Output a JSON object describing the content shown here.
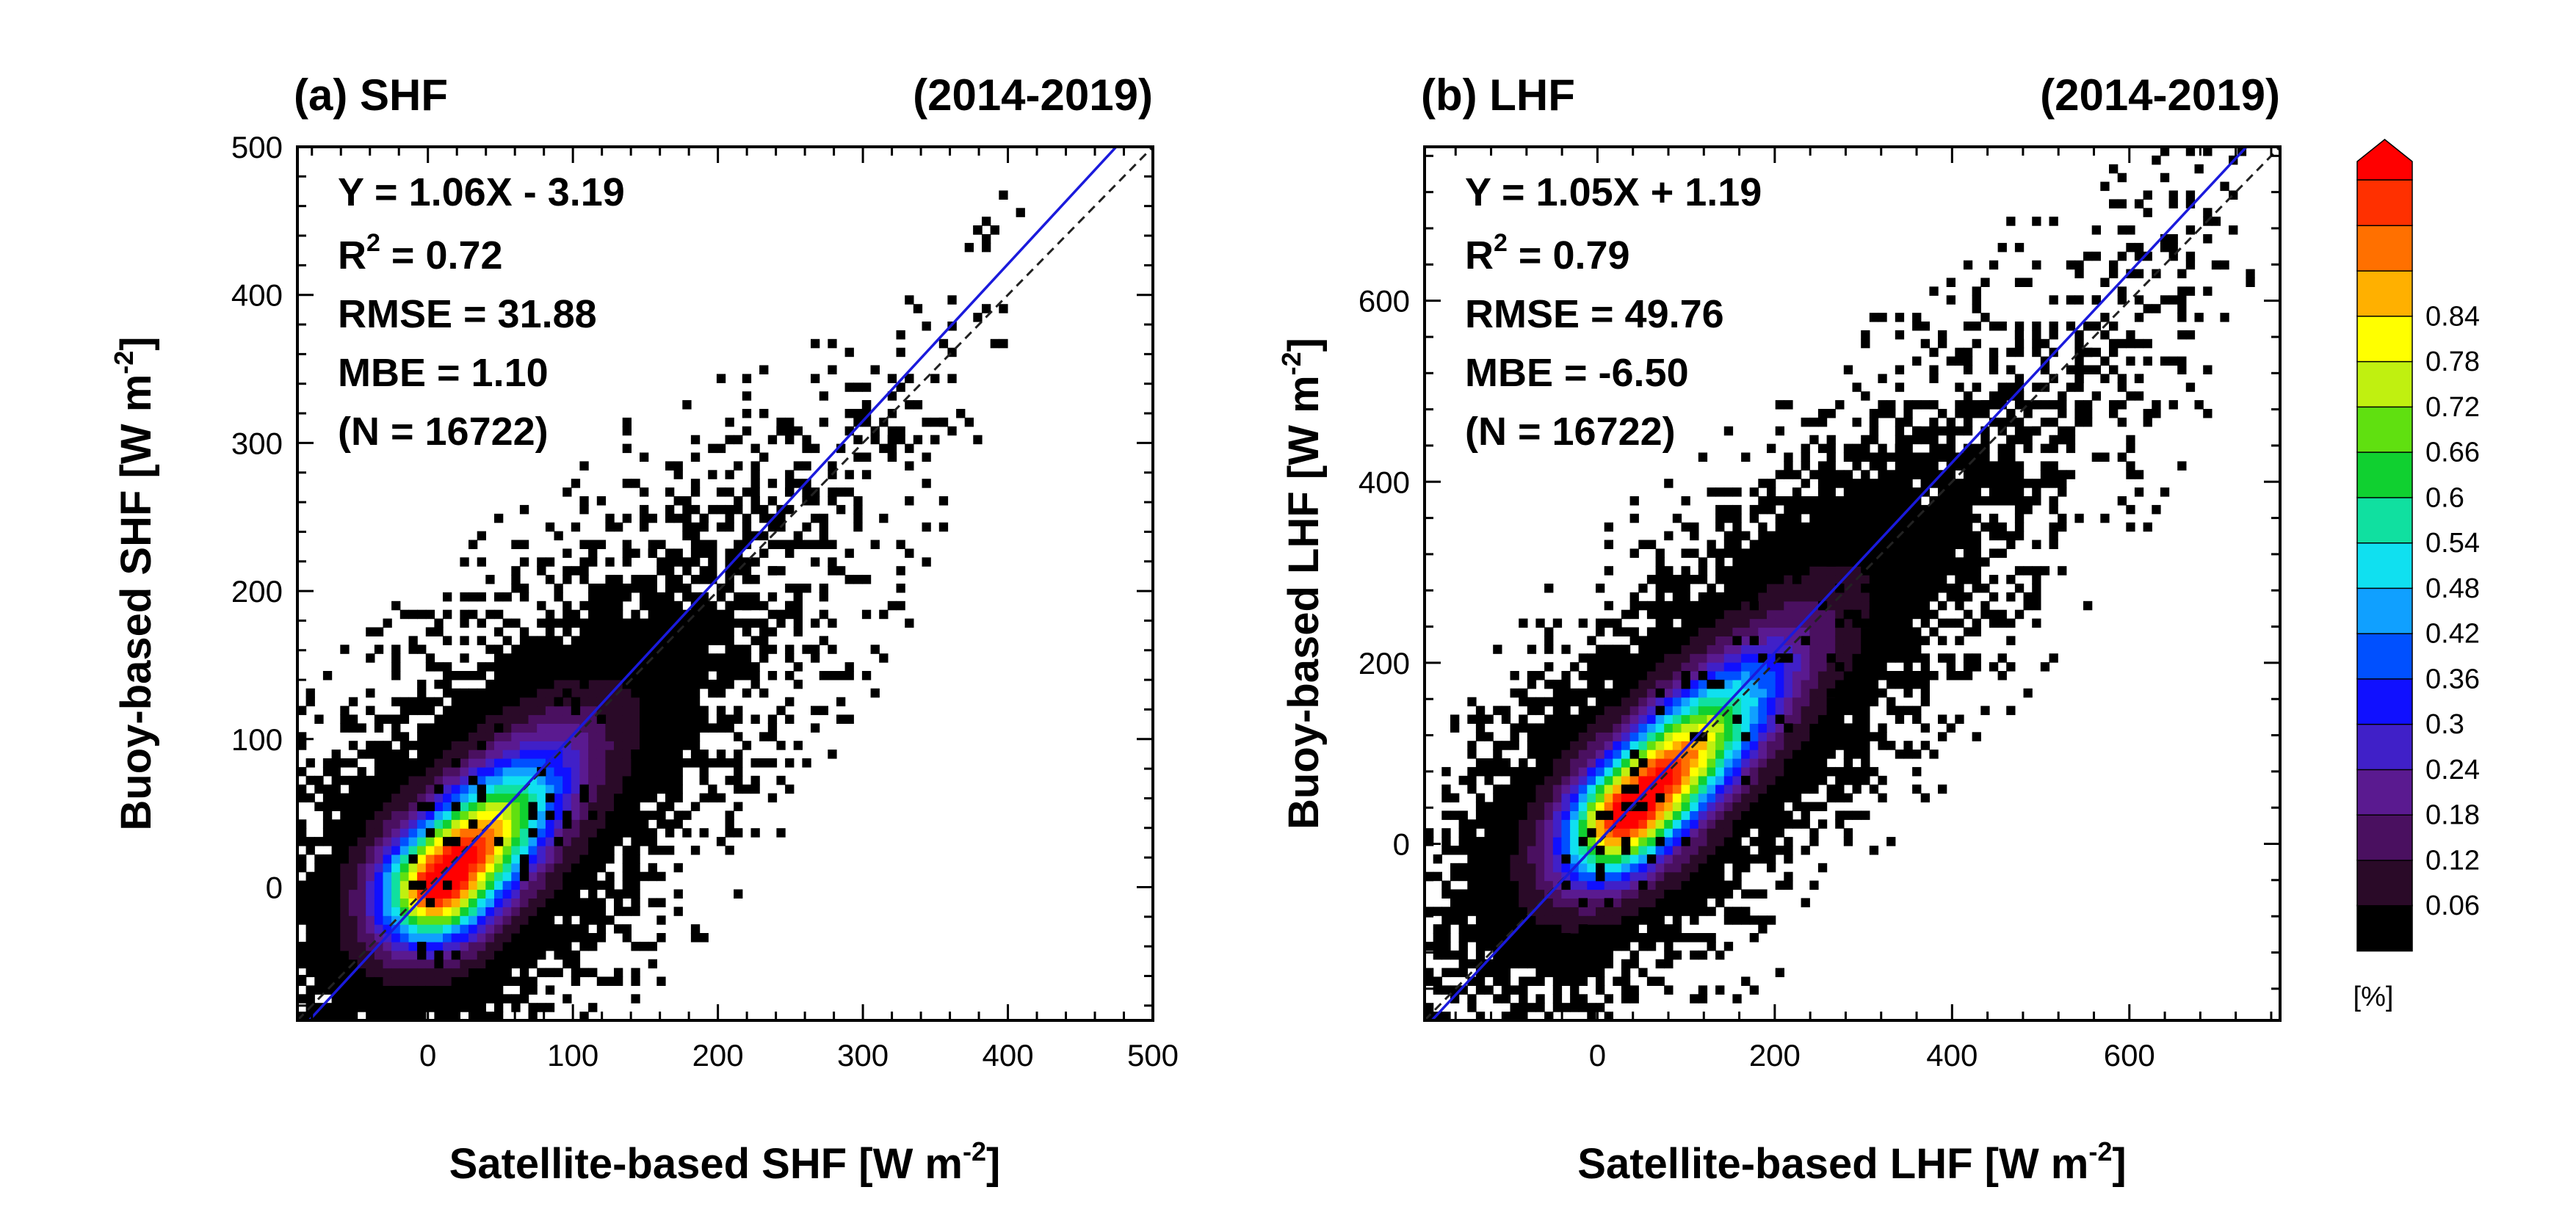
{
  "chart_data": [
    {
      "type": "heatmap",
      "panel_label": "(a) SHF",
      "period": "(2014-2019)",
      "xlabel": "Satellite-based SHF [W m",
      "ylabel": "Buoy-based SHF [W m",
      "unit_exponent": "-2",
      "xlim": [
        -90,
        500
      ],
      "ylim": [
        -90,
        500
      ],
      "xticks": [
        0,
        100,
        200,
        300,
        400,
        500
      ],
      "yticks": [
        0,
        100,
        200,
        300,
        400,
        500
      ],
      "xtick_labels": [
        "0",
        "100",
        "200",
        "300",
        "400",
        "500"
      ],
      "ytick_labels": [
        "0",
        "100",
        "200",
        "300",
        "400",
        "500"
      ],
      "regression": {
        "slope": 1.06,
        "intercept": -3.19
      },
      "stats": {
        "equation": "Y = 1.06X - 3.19",
        "r2_prefix": "R",
        "r2_sup": "2",
        "r2_value": " = 0.72",
        "rmse": "RMSE = 31.88",
        "mbe": "MBE  = 1.10",
        "n": "(N = 16722)"
      },
      "density_core": {
        "cx": 10,
        "cy": 5,
        "slope": 1.02,
        "spread_along": 75,
        "spread_across": 26,
        "peak_percent": 0.9
      },
      "outlier_range": {
        "x": [
          -25,
          410
        ],
        "y": [
          -60,
          480
        ]
      }
    },
    {
      "type": "heatmap",
      "panel_label": "(b) LHF",
      "period": "(2014-2019)",
      "xlabel": "Satellite-based LHF [W m",
      "ylabel": "Buoy-based LHF [W m",
      "unit_exponent": "-2",
      "xlim": [
        -195,
        770
      ],
      "ylim": [
        -195,
        770
      ],
      "xticks": [
        0,
        200,
        400,
        600
      ],
      "yticks": [
        0,
        200,
        400,
        600
      ],
      "xtick_labels": [
        "0",
        "200",
        "400",
        "600"
      ],
      "ytick_labels": [
        "0",
        "200",
        "400",
        "600"
      ],
      "regression": {
        "slope": 1.05,
        "intercept": 1.19
      },
      "stats": {
        "equation": "Y = 1.05X + 1.19",
        "r2_prefix": "R",
        "r2_sup": "2",
        "r2_value": " = 0.79",
        "rmse": "RMSE = 49.76",
        "mbe": "MBE  = -6.50",
        "n": "(N = 16722)"
      },
      "density_core": {
        "cx": 40,
        "cy": 40,
        "slope": 1.0,
        "spread_along": 150,
        "spread_across": 40,
        "peak_percent": 0.9
      },
      "outlier_range": {
        "x": [
          -40,
          720
        ],
        "y": [
          -150,
          730
        ]
      }
    }
  ],
  "colorbar": {
    "unit_label": "[%]",
    "extend": "max",
    "tick_labels": [
      "0.06",
      "0.12",
      "0.18",
      "0.24",
      "0.3",
      "0.36",
      "0.42",
      "0.48",
      "0.54",
      "0.6",
      "0.66",
      "0.72",
      "0.78",
      "0.84"
    ],
    "colors": [
      "#000000",
      "#2a0a28",
      "#4a1060",
      "#5a1a90",
      "#4020c8",
      "#1010ff",
      "#0050ff",
      "#10a0ff",
      "#10e0f0",
      "#10e0a0",
      "#10d030",
      "#60e010",
      "#c0f010",
      "#ffff00",
      "#ffb000",
      "#ff7000",
      "#ff3000",
      "#ff0000"
    ]
  },
  "line_styles": {
    "regression_color": "#1a1adc",
    "identity_color": "#222222"
  }
}
